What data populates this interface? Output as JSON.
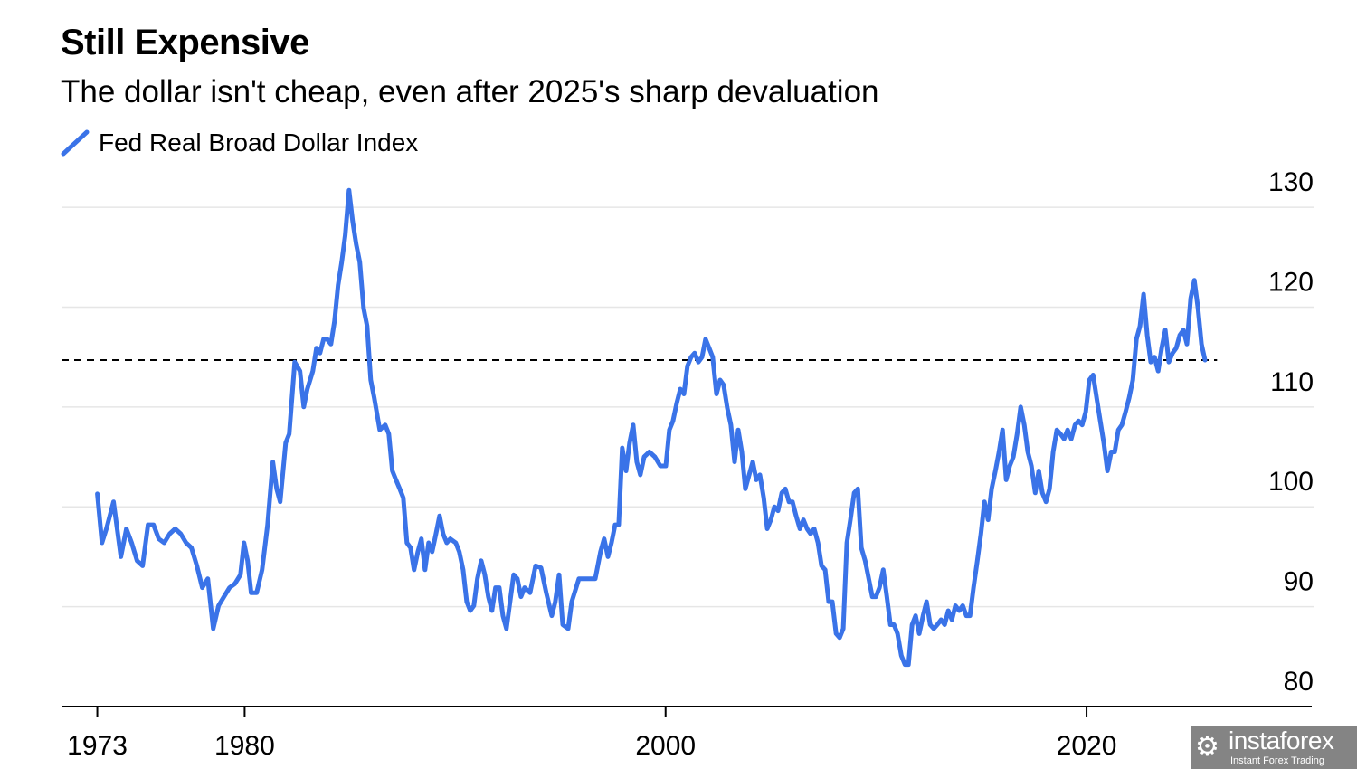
{
  "chart_data": {
    "type": "line",
    "title": "Still Expensive",
    "subtitle": "The dollar isn't cheap, even after 2025's sharp devaluation",
    "xlabel": "",
    "ylabel": "",
    "xlim": [
      1971.3,
      2030.7
    ],
    "ylim": [
      80,
      132
    ],
    "x_ticks": [
      1973,
      1980,
      2000,
      2020
    ],
    "x_tick_labels": [
      "1973",
      "1980",
      "2000",
      "2020"
    ],
    "y_ticks": [
      80,
      90,
      100,
      110,
      120,
      130
    ],
    "y_tick_labels": [
      "80",
      "90",
      "100",
      "110",
      "120",
      "130"
    ],
    "y_axis_side": "right",
    "grid": "horizontal",
    "legend_placement": "top-left",
    "reference_line": {
      "value": 114.7,
      "style": "dashed",
      "color": "#000000",
      "x_end": 2026.2
    },
    "series": [
      {
        "name": "Fed Real Broad Dollar Index",
        "color": "#3a73e8",
        "x": [
          1973.0,
          1973.22,
          1973.43,
          1973.77,
          1974.12,
          1974.38,
          1974.63,
          1974.89,
          1975.15,
          1975.41,
          1975.67,
          1975.92,
          1976.18,
          1976.44,
          1976.7,
          1976.96,
          1977.22,
          1977.47,
          1977.73,
          1977.99,
          1978.25,
          1978.51,
          1978.76,
          1979.02,
          1979.28,
          1979.54,
          1979.8,
          1979.97,
          1980.14,
          1980.31,
          1980.57,
          1980.83,
          1981.09,
          1981.34,
          1981.52,
          1981.69,
          1981.95,
          1982.12,
          1982.38,
          1982.63,
          1982.81,
          1982.98,
          1983.24,
          1983.41,
          1983.58,
          1983.75,
          1983.92,
          1984.1,
          1984.27,
          1984.44,
          1984.61,
          1984.78,
          1984.96,
          1985.13,
          1985.3,
          1985.47,
          1985.65,
          1985.82,
          1985.99,
          1986.16,
          1986.42,
          1986.68,
          1986.85,
          1987.02,
          1987.19,
          1987.37,
          1987.54,
          1987.71,
          1987.88,
          1988.05,
          1988.23,
          1988.4,
          1988.57,
          1988.74,
          1988.91,
          1989.09,
          1989.26,
          1989.43,
          1989.6,
          1989.77,
          1990.03,
          1990.2,
          1990.38,
          1990.55,
          1990.72,
          1990.89,
          1991.06,
          1991.24,
          1991.41,
          1991.58,
          1991.75,
          1991.92,
          1992.1,
          1992.27,
          1992.44,
          1992.61,
          1992.78,
          1992.96,
          1993.13,
          1993.3,
          1993.56,
          1993.82,
          1994.08,
          1994.33,
          1994.59,
          1994.76,
          1994.94,
          1995.11,
          1995.37,
          1995.54,
          1995.88,
          1996.31,
          1996.66,
          1996.91,
          1997.08,
          1997.26,
          1997.43,
          1997.6,
          1997.77,
          1997.94,
          1998.12,
          1998.29,
          1998.46,
          1998.63,
          1998.8,
          1998.98,
          1999.23,
          1999.49,
          1999.75,
          2000.01,
          2000.18,
          2000.35,
          2000.53,
          2000.7,
          2000.87,
          2001.04,
          2001.21,
          2001.38,
          2001.56,
          2001.73,
          2001.9,
          2002.07,
          2002.24,
          2002.42,
          2002.59,
          2002.76,
          2002.93,
          2003.1,
          2003.28,
          2003.45,
          2003.62,
          2003.79,
          2003.97,
          2004.14,
          2004.31,
          2004.48,
          2004.66,
          2004.83,
          2005.0,
          2005.17,
          2005.34,
          2005.52,
          2005.69,
          2005.86,
          2006.03,
          2006.2,
          2006.38,
          2006.55,
          2006.72,
          2006.89,
          2007.06,
          2007.24,
          2007.41,
          2007.58,
          2007.75,
          2007.92,
          2008.1,
          2008.27,
          2008.44,
          2008.61,
          2008.78,
          2008.96,
          2009.13,
          2009.3,
          2009.48,
          2009.65,
          2009.82,
          2009.99,
          2010.16,
          2010.34,
          2010.51,
          2010.68,
          2010.85,
          2011.02,
          2011.2,
          2011.37,
          2011.54,
          2011.71,
          2011.88,
          2012.05,
          2012.23,
          2012.4,
          2012.57,
          2012.74,
          2012.91,
          2013.09,
          2013.26,
          2013.43,
          2013.6,
          2013.77,
          2013.95,
          2014.12,
          2014.29,
          2014.46,
          2014.63,
          2014.81,
          2014.98,
          2015.15,
          2015.32,
          2015.49,
          2015.67,
          2015.84,
          2016.01,
          2016.18,
          2016.35,
          2016.52,
          2016.7,
          2016.87,
          2017.04,
          2017.21,
          2017.38,
          2017.56,
          2017.73,
          2017.9,
          2018.07,
          2018.24,
          2018.41,
          2018.59,
          2018.76,
          2018.93,
          2019.1,
          2019.27,
          2019.45,
          2019.62,
          2019.79,
          2019.96,
          2020.13,
          2020.31,
          2020.48,
          2020.65,
          2020.82,
          2020.99,
          2021.17,
          2021.34,
          2021.51,
          2021.68,
          2021.85,
          2022.02,
          2022.2,
          2022.37,
          2022.54,
          2022.71,
          2022.88,
          2023.05,
          2023.23,
          2023.4,
          2023.57,
          2023.74,
          2023.91,
          2024.09,
          2024.26,
          2024.43,
          2024.6,
          2024.77,
          2024.95,
          2025.12,
          2025.29,
          2025.46,
          2025.63
        ],
        "y": [
          101.3,
          96.4,
          97.8,
          100.5,
          95.0,
          97.8,
          96.4,
          94.6,
          94.1,
          98.2,
          98.2,
          96.8,
          96.4,
          97.3,
          97.8,
          97.3,
          96.4,
          95.9,
          94.1,
          91.9,
          92.8,
          87.8,
          90.1,
          91.0,
          91.9,
          92.3,
          93.2,
          96.4,
          94.6,
          91.4,
          91.4,
          93.7,
          98.2,
          104.5,
          101.8,
          100.5,
          106.4,
          107.3,
          114.5,
          113.6,
          110.0,
          111.8,
          113.6,
          115.9,
          115.4,
          116.8,
          116.8,
          116.3,
          118.6,
          122.2,
          124.5,
          127.2,
          131.7,
          128.6,
          126.3,
          124.5,
          119.9,
          118.1,
          112.7,
          110.9,
          107.7,
          108.2,
          107.3,
          103.6,
          102.7,
          101.8,
          100.9,
          96.4,
          95.9,
          93.7,
          95.5,
          96.8,
          93.7,
          96.4,
          95.5,
          97.3,
          99.1,
          97.3,
          96.4,
          96.8,
          96.4,
          95.5,
          93.7,
          90.5,
          89.6,
          90.1,
          92.8,
          94.6,
          93.2,
          91.0,
          89.6,
          91.9,
          91.9,
          89.1,
          87.8,
          90.5,
          93.2,
          92.8,
          91.0,
          91.9,
          91.4,
          94.1,
          93.9,
          91.4,
          89.1,
          90.5,
          93.2,
          88.2,
          87.8,
          90.5,
          92.8,
          92.8,
          92.8,
          95.5,
          96.8,
          95.0,
          96.4,
          98.2,
          98.2,
          105.9,
          103.6,
          106.4,
          108.2,
          104.5,
          103.2,
          105.0,
          105.5,
          105.0,
          104.1,
          104.1,
          107.7,
          108.6,
          110.4,
          111.8,
          111.3,
          114.1,
          115.0,
          115.4,
          114.5,
          115.0,
          116.8,
          115.9,
          115.0,
          111.3,
          112.7,
          112.2,
          109.9,
          108.2,
          104.5,
          107.7,
          105.5,
          101.8,
          103.2,
          104.5,
          102.7,
          103.2,
          100.9,
          97.8,
          98.7,
          100.0,
          99.6,
          101.4,
          101.8,
          100.5,
          100.5,
          99.1,
          97.8,
          98.7,
          97.8,
          97.3,
          97.8,
          96.4,
          94.1,
          93.7,
          90.5,
          90.5,
          87.3,
          86.9,
          87.8,
          96.4,
          98.7,
          101.4,
          101.8,
          95.9,
          94.6,
          92.8,
          91.0,
          91.0,
          91.9,
          93.7,
          91.0,
          88.2,
          88.2,
          87.3,
          85.1,
          84.2,
          84.2,
          88.2,
          89.1,
          87.3,
          89.1,
          90.5,
          88.2,
          87.8,
          88.2,
          88.7,
          88.2,
          89.6,
          88.7,
          90.1,
          89.6,
          90.1,
          89.1,
          89.1,
          91.9,
          94.6,
          97.3,
          100.5,
          98.7,
          101.8,
          103.6,
          105.5,
          107.7,
          102.7,
          104.1,
          105.0,
          107.3,
          110.0,
          108.2,
          105.5,
          104.1,
          101.4,
          103.6,
          101.4,
          100.5,
          101.8,
          105.5,
          107.7,
          107.3,
          106.8,
          107.7,
          106.8,
          108.2,
          108.6,
          108.2,
          109.5,
          112.7,
          113.2,
          110.9,
          108.6,
          106.4,
          103.6,
          105.5,
          105.5,
          107.7,
          108.2,
          109.5,
          110.9,
          112.7,
          116.8,
          118.1,
          121.3,
          117.2,
          114.5,
          115.0,
          113.6,
          115.9,
          117.7,
          114.5,
          115.4,
          115.9,
          117.2,
          117.7,
          116.3,
          120.9,
          122.7,
          120.0,
          116.3,
          114.7
        ]
      }
    ]
  },
  "watermark": {
    "brand": "instaforex",
    "tagline": "Instant Forex Trading"
  }
}
